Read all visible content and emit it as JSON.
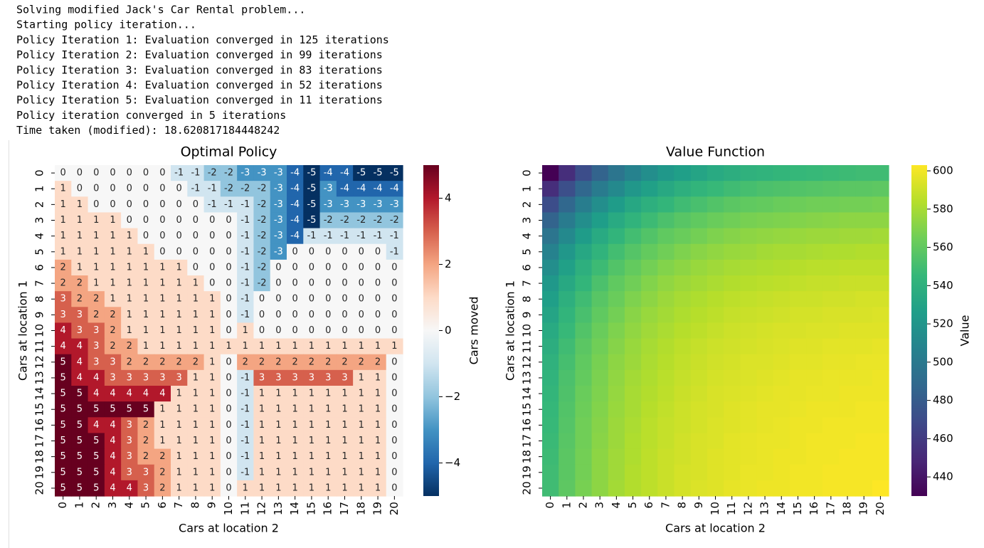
{
  "console": {
    "lines": [
      "Solving modified Jack's Car Rental problem...",
      "Starting policy iteration...",
      "Policy Iteration 1: Evaluation converged in 125 iterations",
      "Policy Iteration 2: Evaluation converged in 99 iterations",
      "Policy Iteration 3: Evaluation converged in 83 iterations",
      "Policy Iteration 4: Evaluation converged in 52 iterations",
      "Policy Iteration 5: Evaluation converged in 11 iterations",
      "Policy iteration converged in 5 iterations",
      "Time taken (modified): 18.620817184448242"
    ]
  },
  "chart_data": [
    {
      "type": "heatmap",
      "title": "Optimal Policy",
      "xlabel": "Cars at location 2",
      "ylabel": "Cars at location 1",
      "x": [
        0,
        1,
        2,
        3,
        4,
        5,
        6,
        7,
        8,
        9,
        10,
        11,
        12,
        13,
        14,
        15,
        16,
        17,
        18,
        19,
        20
      ],
      "y": [
        0,
        1,
        2,
        3,
        4,
        5,
        6,
        7,
        8,
        9,
        10,
        11,
        12,
        13,
        14,
        15,
        16,
        17,
        18,
        19,
        20
      ],
      "colormap": "RdBu_r",
      "annotate": true,
      "colorbar": {
        "label": "Cars moved",
        "lim": [
          -5,
          5
        ],
        "ticks": [
          {
            "value": -4,
            "label": "−4"
          },
          {
            "value": -2,
            "label": "−2"
          },
          0,
          2,
          4
        ]
      },
      "values": [
        [
          0,
          0,
          0,
          0,
          0,
          0,
          0,
          -1,
          -1,
          -2,
          -2,
          -3,
          -3,
          -3,
          -4,
          -5,
          -4,
          -4,
          -5,
          -5,
          -5
        ],
        [
          1,
          0,
          0,
          0,
          0,
          0,
          0,
          0,
          -1,
          -1,
          -2,
          -2,
          -2,
          -3,
          -4,
          -5,
          -3,
          -4,
          -4,
          -4,
          -4
        ],
        [
          1,
          1,
          0,
          0,
          0,
          0,
          0,
          0,
          0,
          -1,
          -1,
          -1,
          -2,
          -3,
          -4,
          -5,
          -3,
          -3,
          -3,
          -3,
          -3
        ],
        [
          1,
          1,
          1,
          1,
          0,
          0,
          0,
          0,
          0,
          0,
          0,
          -1,
          -2,
          -3,
          -4,
          -5,
          -2,
          -2,
          -2,
          -2,
          -2
        ],
        [
          1,
          1,
          1,
          1,
          1,
          0,
          0,
          0,
          0,
          0,
          0,
          -1,
          -2,
          -3,
          -4,
          -1,
          -1,
          -1,
          -1,
          -1,
          -1
        ],
        [
          1,
          1,
          1,
          1,
          1,
          1,
          0,
          0,
          0,
          0,
          0,
          -1,
          -2,
          -3,
          0,
          0,
          0,
          0,
          0,
          0,
          -1
        ],
        [
          2,
          1,
          1,
          1,
          1,
          1,
          1,
          1,
          0,
          0,
          0,
          -1,
          -2,
          0,
          0,
          0,
          0,
          0,
          0,
          0,
          0
        ],
        [
          2,
          2,
          1,
          1,
          1,
          1,
          1,
          1,
          1,
          0,
          0,
          -1,
          -2,
          0,
          0,
          0,
          0,
          0,
          0,
          0,
          0
        ],
        [
          3,
          2,
          2,
          1,
          1,
          1,
          1,
          1,
          1,
          1,
          0,
          -1,
          0,
          0,
          0,
          0,
          0,
          0,
          0,
          0,
          0
        ],
        [
          3,
          3,
          2,
          2,
          1,
          1,
          1,
          1,
          1,
          1,
          0,
          -1,
          0,
          0,
          0,
          0,
          0,
          0,
          0,
          0,
          0
        ],
        [
          4,
          3,
          3,
          2,
          1,
          1,
          1,
          1,
          1,
          1,
          0,
          1,
          0,
          0,
          0,
          0,
          0,
          0,
          0,
          0,
          0
        ],
        [
          4,
          4,
          3,
          2,
          2,
          1,
          1,
          1,
          1,
          1,
          1,
          1,
          1,
          1,
          1,
          1,
          1,
          1,
          1,
          1,
          1
        ],
        [
          5,
          4,
          3,
          3,
          2,
          2,
          2,
          2,
          2,
          1,
          0,
          2,
          2,
          2,
          2,
          2,
          2,
          2,
          2,
          2,
          0
        ],
        [
          5,
          4,
          4,
          3,
          3,
          3,
          3,
          3,
          1,
          1,
          0,
          -1,
          3,
          3,
          3,
          3,
          3,
          3,
          1,
          1,
          0
        ],
        [
          5,
          5,
          4,
          4,
          4,
          4,
          4,
          1,
          1,
          1,
          0,
          -1,
          1,
          1,
          1,
          1,
          1,
          1,
          1,
          1,
          0
        ],
        [
          5,
          5,
          5,
          5,
          5,
          5,
          1,
          1,
          1,
          1,
          0,
          -1,
          1,
          1,
          1,
          1,
          1,
          1,
          1,
          1,
          0
        ],
        [
          5,
          5,
          4,
          4,
          3,
          2,
          1,
          1,
          1,
          1,
          0,
          -1,
          1,
          1,
          1,
          1,
          1,
          1,
          1,
          1,
          0
        ],
        [
          5,
          5,
          5,
          4,
          3,
          2,
          1,
          1,
          1,
          1,
          0,
          -1,
          1,
          1,
          1,
          1,
          1,
          1,
          1,
          1,
          0
        ],
        [
          5,
          5,
          5,
          4,
          3,
          2,
          2,
          1,
          1,
          1,
          0,
          -1,
          1,
          1,
          1,
          1,
          1,
          1,
          1,
          1,
          0
        ],
        [
          5,
          5,
          5,
          4,
          3,
          3,
          2,
          1,
          1,
          1,
          0,
          -1,
          1,
          1,
          1,
          1,
          1,
          1,
          1,
          1,
          0
        ],
        [
          5,
          5,
          5,
          4,
          4,
          3,
          2,
          1,
          1,
          1,
          0,
          1,
          1,
          1,
          1,
          1,
          1,
          1,
          1,
          1,
          0
        ]
      ]
    },
    {
      "type": "heatmap",
      "title": "Value Function",
      "xlabel": "Cars at location 2",
      "ylabel": "Cars at location 1",
      "x": [
        0,
        1,
        2,
        3,
        4,
        5,
        6,
        7,
        8,
        9,
        10,
        11,
        12,
        13,
        14,
        15,
        16,
        17,
        18,
        19,
        20
      ],
      "y": [
        0,
        1,
        2,
        3,
        4,
        5,
        6,
        7,
        8,
        9,
        10,
        11,
        12,
        13,
        14,
        15,
        16,
        17,
        18,
        19,
        20
      ],
      "colormap": "viridis",
      "annotate": false,
      "colorbar": {
        "label": "Value",
        "lim": [
          430,
          603
        ],
        "ticks": [
          440,
          460,
          480,
          500,
          520,
          540,
          560,
          580,
          600
        ]
      },
      "values": [
        [
          430,
          453,
          471,
          485,
          497,
          507,
          515,
          522,
          527,
          531,
          535,
          538,
          541,
          542,
          544,
          545,
          546,
          547,
          548,
          549,
          549
        ],
        [
          453,
          472,
          488,
          502,
          512,
          521,
          528,
          534,
          539,
          543,
          546,
          549,
          551,
          553,
          554,
          555,
          556,
          557,
          558,
          558,
          559
        ],
        [
          471,
          488,
          503,
          515,
          525,
          533,
          539,
          544,
          549,
          552,
          555,
          558,
          560,
          561,
          563,
          564,
          565,
          565,
          566,
          566,
          567
        ],
        [
          485,
          502,
          515,
          526,
          535,
          542,
          548,
          553,
          557,
          560,
          563,
          565,
          567,
          568,
          569,
          570,
          571,
          572,
          573,
          573,
          573
        ],
        [
          497,
          512,
          525,
          535,
          543,
          550,
          555,
          560,
          563,
          566,
          569,
          571,
          573,
          574,
          575,
          576,
          577,
          577,
          578,
          578,
          579
        ],
        [
          507,
          521,
          533,
          542,
          550,
          556,
          561,
          565,
          569,
          572,
          574,
          576,
          577,
          579,
          580,
          580,
          581,
          582,
          582,
          583,
          583
        ],
        [
          515,
          528,
          539,
          548,
          555,
          561,
          566,
          570,
          573,
          576,
          578,
          580,
          581,
          582,
          583,
          584,
          585,
          585,
          586,
          586,
          586
        ],
        [
          522,
          534,
          544,
          553,
          560,
          565,
          570,
          574,
          577,
          579,
          581,
          583,
          584,
          585,
          586,
          587,
          588,
          588,
          589,
          589,
          589
        ],
        [
          527,
          539,
          549,
          557,
          563,
          569,
          573,
          577,
          580,
          582,
          584,
          586,
          587,
          588,
          589,
          590,
          590,
          591,
          591,
          592,
          592
        ],
        [
          531,
          543,
          552,
          560,
          566,
          572,
          576,
          579,
          582,
          584,
          586,
          588,
          589,
          590,
          591,
          592,
          592,
          593,
          593,
          593,
          594
        ],
        [
          535,
          546,
          555,
          563,
          569,
          574,
          578,
          581,
          584,
          586,
          588,
          590,
          591,
          592,
          593,
          593,
          594,
          594,
          595,
          595,
          595
        ],
        [
          538,
          549,
          558,
          565,
          571,
          576,
          580,
          583,
          586,
          588,
          590,
          591,
          592,
          593,
          594,
          595,
          595,
          596,
          596,
          596,
          597
        ],
        [
          541,
          551,
          560,
          567,
          573,
          577,
          581,
          584,
          587,
          589,
          591,
          592,
          594,
          594,
          595,
          596,
          596,
          597,
          597,
          598,
          598
        ],
        [
          542,
          553,
          561,
          568,
          574,
          579,
          582,
          585,
          588,
          590,
          592,
          593,
          594,
          595,
          596,
          597,
          597,
          598,
          598,
          598,
          599
        ],
        [
          544,
          554,
          563,
          569,
          575,
          580,
          583,
          586,
          589,
          591,
          593,
          594,
          595,
          596,
          597,
          597,
          598,
          598,
          599,
          599,
          599
        ],
        [
          545,
          555,
          564,
          570,
          576,
          580,
          584,
          587,
          590,
          592,
          593,
          595,
          596,
          597,
          597,
          598,
          599,
          599,
          599,
          600,
          600
        ],
        [
          546,
          556,
          565,
          571,
          577,
          581,
          585,
          588,
          590,
          592,
          594,
          595,
          596,
          597,
          598,
          599,
          599,
          600,
          600,
          600,
          600
        ],
        [
          547,
          557,
          565,
          572,
          577,
          582,
          585,
          588,
          591,
          593,
          594,
          596,
          597,
          598,
          598,
          599,
          600,
          600,
          600,
          601,
          601
        ],
        [
          548,
          558,
          566,
          573,
          578,
          582,
          586,
          589,
          591,
          593,
          595,
          596,
          597,
          598,
          599,
          599,
          600,
          600,
          601,
          601,
          601
        ],
        [
          549,
          558,
          566,
          573,
          578,
          583,
          586,
          589,
          592,
          593,
          595,
          596,
          598,
          598,
          599,
          600,
          600,
          601,
          601,
          601,
          601
        ],
        [
          549,
          559,
          567,
          573,
          579,
          583,
          586,
          589,
          592,
          594,
          595,
          597,
          598,
          599,
          599,
          600,
          600,
          601,
          601,
          601,
          603
        ]
      ]
    }
  ]
}
